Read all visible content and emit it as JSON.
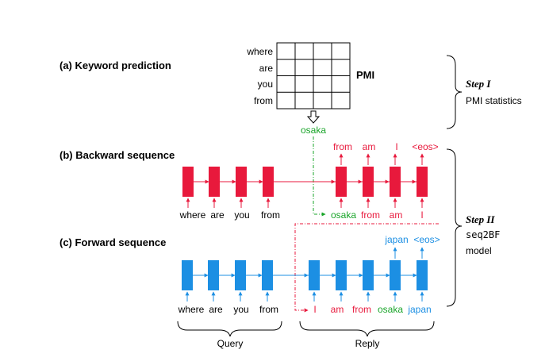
{
  "colors": {
    "red": "#e8193c",
    "blue": "#1c8fe3",
    "green": "#1aa52a",
    "black": "#000000"
  },
  "sections": {
    "a": "(a) Keyword prediction",
    "b": "(b) Backward sequence",
    "c": "(c) Forward sequence"
  },
  "pmi": {
    "rows": [
      "where",
      "are",
      "you",
      "from"
    ],
    "label": "PMI",
    "keyword": "osaka"
  },
  "steps": {
    "one_title": "Step I",
    "one_desc": "PMI statistics",
    "two_title": "Step II",
    "two_model": "seq2BF",
    "two_desc": "model"
  },
  "backward": {
    "inputs_query": [
      "where",
      "are",
      "you",
      "from"
    ],
    "inputs_reply": [
      "osaka",
      "from",
      "am",
      "I"
    ],
    "outputs": [
      "from",
      "am",
      "I",
      "<eos>"
    ]
  },
  "forward": {
    "inputs_query": [
      "where",
      "are",
      "you",
      "from"
    ],
    "inputs_reply": [
      "I",
      "am",
      "from",
      "osaka",
      "japan"
    ],
    "outputs": [
      "japan",
      "<eos>"
    ]
  },
  "braces": {
    "query": "Query",
    "reply": "Reply"
  }
}
